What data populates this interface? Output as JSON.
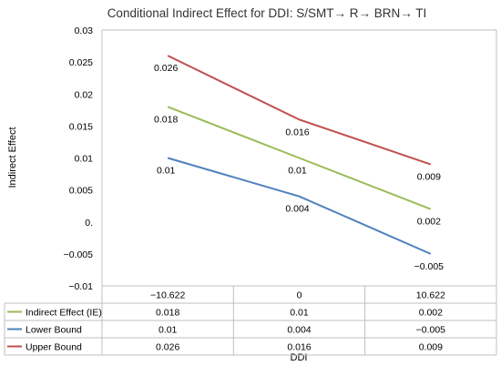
{
  "chart_data": {
    "type": "line",
    "title": "Conditional Indirect Effect for DDI: S/SMT→ R→ BRN→ TI",
    "xlabel": "DDI",
    "ylabel": "Indirect Effect",
    "categories": [
      "−10.622",
      "0",
      "10.622"
    ],
    "ylim": [
      -0.01,
      0.03
    ],
    "yticks": [
      {
        "value": 0.03,
        "label": "0.03"
      },
      {
        "value": 0.025,
        "label": "0.025"
      },
      {
        "value": 0.02,
        "label": "0.02"
      },
      {
        "value": 0.015,
        "label": "0.015"
      },
      {
        "value": 0.01,
        "label": "0.01"
      },
      {
        "value": 0.005,
        "label": "0.005"
      },
      {
        "value": 0,
        "label": "0."
      },
      {
        "value": -0.005,
        "label": "−0.005"
      },
      {
        "value": -0.01,
        "label": "−0.01"
      }
    ],
    "grid": false,
    "legend": "data-table",
    "series": [
      {
        "name": "Indirect Effect (IE)",
        "color": "#9BBB59",
        "values": [
          0.018,
          0.01,
          0.002
        ],
        "labels": [
          "0.018",
          "0.01",
          "0.002"
        ]
      },
      {
        "name": "Lower Bound",
        "color": "#4F81BD",
        "values": [
          0.01,
          0.004,
          -0.005
        ],
        "labels": [
          "0.01",
          "0.004",
          "−0.005"
        ]
      },
      {
        "name": "Upper Bound",
        "color": "#C0504D",
        "values": [
          0.026,
          0.016,
          0.009
        ],
        "labels": [
          "0.026",
          "0.016",
          "0.009"
        ]
      }
    ]
  }
}
